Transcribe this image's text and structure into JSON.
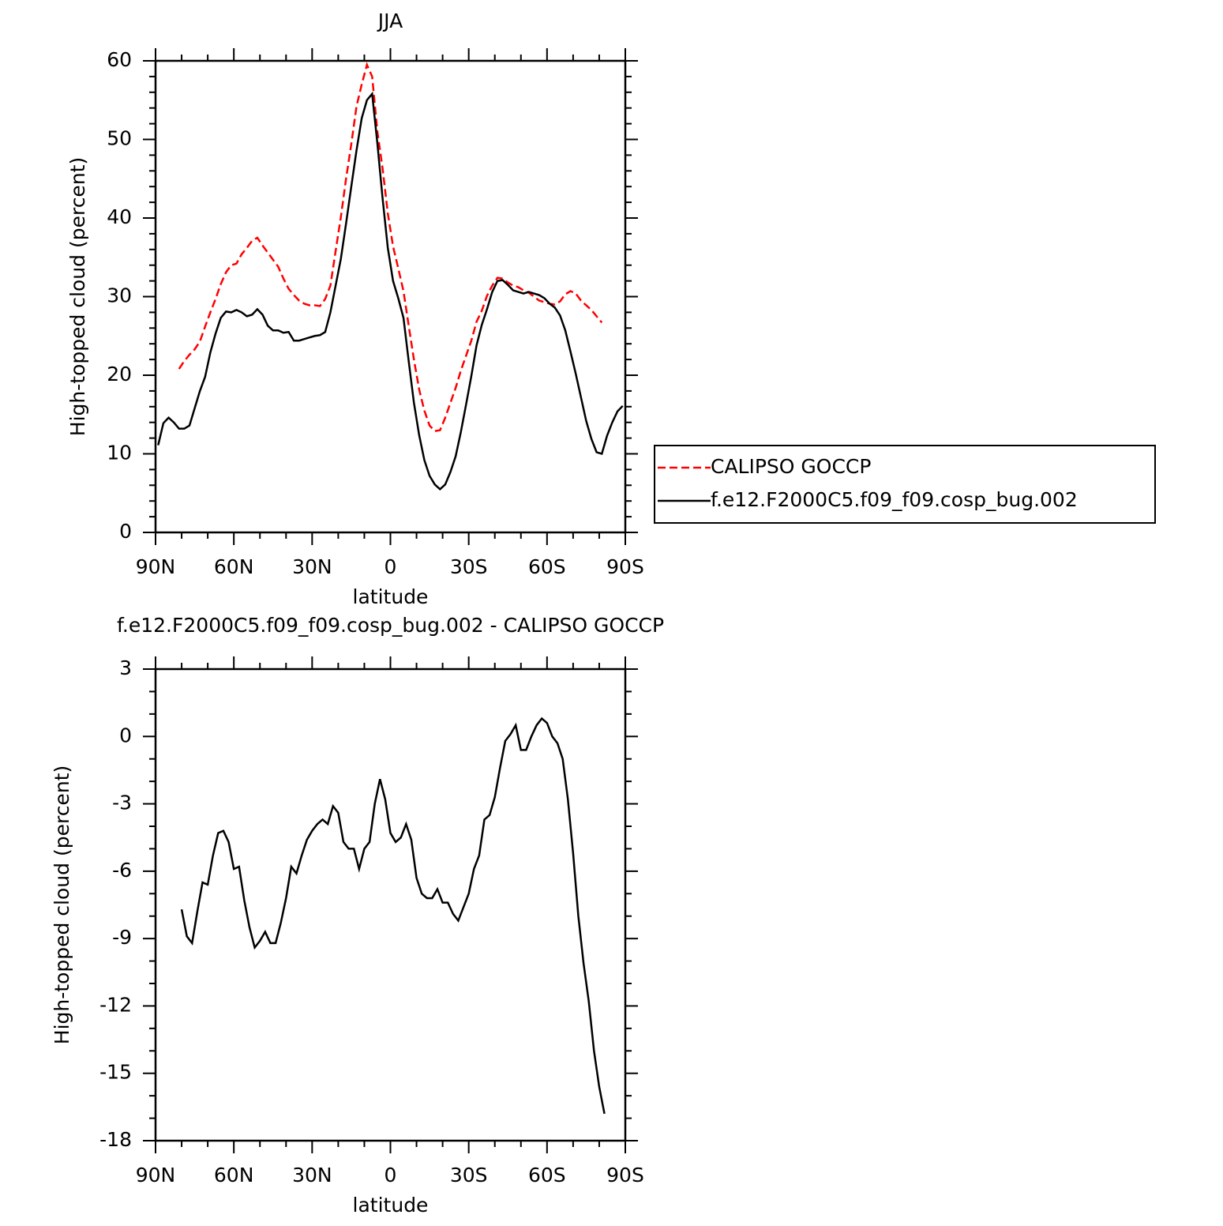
{
  "chart_data": [
    {
      "type": "line",
      "title": "JJA",
      "x_label": "latitude",
      "y_label": "High-topped cloud (percent)",
      "x": [
        89,
        87,
        85,
        83,
        81,
        79,
        77,
        75,
        73,
        71,
        69,
        67,
        65,
        63,
        61,
        59,
        57,
        55,
        53,
        51,
        49,
        47,
        45,
        43,
        41,
        39,
        37,
        35,
        33,
        31,
        29,
        27,
        25,
        23,
        21,
        19,
        17,
        15,
        13,
        11,
        9,
        7,
        5,
        3,
        1,
        -1,
        -3,
        -5,
        -7,
        -9,
        -11,
        -13,
        -15,
        -17,
        -19,
        -21,
        -23,
        -25,
        -27,
        -29,
        -31,
        -33,
        -35,
        -37,
        -39,
        -41,
        -43,
        -45,
        -47,
        -49,
        -51,
        -53,
        -55,
        -57,
        -59,
        -61,
        -63,
        -65,
        -67,
        -69,
        -71,
        -73,
        -75,
        -77,
        -79,
        -81,
        -83,
        -85,
        -87,
        -89
      ],
      "xlim": [
        90,
        -90
      ],
      "xticks": [
        {
          "value": 90,
          "label": "90N"
        },
        {
          "value": 60,
          "label": "60N"
        },
        {
          "value": 30,
          "label": "30N"
        },
        0,
        {
          "value": -30,
          "label": "30S"
        },
        {
          "value": -60,
          "label": "60S"
        },
        {
          "value": -90,
          "label": "90S"
        }
      ],
      "ylim": [
        0,
        60
      ],
      "yticks": [
        0,
        10,
        20,
        30,
        40,
        50,
        60
      ],
      "legend": "right",
      "series": [
        {
          "name": "CALIPSO GOCCP",
          "color": "#ff0000",
          "linestyle": "dashed",
          "values": [
            null,
            null,
            null,
            null,
            20.8,
            21.8,
            22.6,
            23.3,
            24.3,
            26.2,
            28.0,
            29.7,
            31.6,
            33.1,
            34.0,
            34.2,
            35.4,
            36.2,
            37.1,
            37.5,
            36.5,
            35.6,
            34.7,
            33.8,
            32.3,
            31.0,
            30.2,
            29.5,
            29.1,
            28.9,
            28.9,
            28.8,
            29.7,
            31.4,
            35.8,
            40.1,
            45.0,
            49.4,
            54.2,
            57.0,
            59.5,
            58.0,
            51.0,
            46.3,
            40.6,
            36.4,
            33.6,
            30.7,
            26.3,
            22.0,
            18.2,
            15.5,
            13.6,
            12.9,
            13.0,
            14.6,
            16.5,
            18.4,
            20.6,
            22.5,
            24.4,
            26.8,
            28.2,
            30.1,
            31.4,
            32.4,
            32.3,
            31.8,
            31.4,
            31.2,
            30.8,
            30.5,
            30.0,
            29.5,
            29.3,
            29.1,
            29.0,
            29.4,
            30.3,
            30.7,
            30.4,
            29.5,
            28.9,
            28.3,
            27.5,
            26.7,
            null,
            null,
            null,
            null
          ]
        },
        {
          "name": "f.e12.F2000C5.f09_f09.cosp_bug.002",
          "color": "#000000",
          "linestyle": "solid",
          "values": [
            11.1,
            13.9,
            14.6,
            14.0,
            13.2,
            13.2,
            13.6,
            15.8,
            18.0,
            19.8,
            22.9,
            25.3,
            27.3,
            28.1,
            28.0,
            28.3,
            28.0,
            27.5,
            27.7,
            28.4,
            27.7,
            26.3,
            25.7,
            25.7,
            25.4,
            25.5,
            24.4,
            24.4,
            24.6,
            24.8,
            25.0,
            25.1,
            25.5,
            28.0,
            31.4,
            34.8,
            39.3,
            44.0,
            48.6,
            52.7,
            55.0,
            55.8,
            49.5,
            42.5,
            36.2,
            32.0,
            29.8,
            27.3,
            21.8,
            16.5,
            12.4,
            9.2,
            7.2,
            6.1,
            5.5,
            6.1,
            7.7,
            9.7,
            12.8,
            16.3,
            19.9,
            23.8,
            26.4,
            28.4,
            30.6,
            32.0,
            32.1,
            31.5,
            30.8,
            30.6,
            30.4,
            30.6,
            30.4,
            30.2,
            29.8,
            29.1,
            28.6,
            27.6,
            25.7,
            23.0,
            20.2,
            17.2,
            14.2,
            11.9,
            10.2,
            10.0,
            12.3,
            14.0,
            15.4,
            16.1
          ]
        }
      ]
    },
    {
      "type": "line",
      "title": "f.e12.F2000C5.f09_f09.cosp_bug.002 - CALIPSO GOCCP",
      "x_label": "latitude",
      "y_label": "High-topped cloud (percent)",
      "x": [
        80,
        78,
        76,
        74,
        72,
        70,
        68,
        66,
        64,
        62,
        60,
        58,
        56,
        54,
        52,
        50,
        48,
        46,
        44,
        42,
        40,
        38,
        36,
        34,
        32,
        30,
        28,
        26,
        24,
        22,
        20,
        18,
        16,
        14,
        12,
        10,
        8,
        6,
        4,
        2,
        0,
        -2,
        -4,
        -6,
        -8,
        -10,
        -12,
        -14,
        -16,
        -18,
        -20,
        -22,
        -24,
        -26,
        -28,
        -30,
        -32,
        -34,
        -36,
        -38,
        -40,
        -42,
        -44,
        -46,
        -48,
        -50,
        -52,
        -54,
        -56,
        -58,
        -60,
        -62,
        -64,
        -66,
        -68,
        -70,
        -72,
        -74,
        -76,
        -78,
        -80,
        -82
      ],
      "xlim": [
        90,
        -90
      ],
      "xticks": [
        {
          "value": 90,
          "label": "90N"
        },
        {
          "value": 60,
          "label": "60N"
        },
        {
          "value": 30,
          "label": "30N"
        },
        0,
        {
          "value": -30,
          "label": "30S"
        },
        {
          "value": -60,
          "label": "60S"
        },
        {
          "value": -90,
          "label": "90S"
        }
      ],
      "ylim": [
        -18,
        3
      ],
      "yticks": [
        -18,
        -15,
        -12,
        -9,
        -6,
        -3,
        0,
        3
      ],
      "series": [
        {
          "color": "#000000",
          "linestyle": "solid",
          "values": [
            -7.7,
            -8.9,
            -9.2,
            -7.8,
            -6.5,
            -6.6,
            -5.3,
            -4.3,
            -4.2,
            -4.7,
            -5.9,
            -5.8,
            -7.3,
            -8.5,
            -9.4,
            -9.1,
            -8.7,
            -9.2,
            -9.2,
            -8.3,
            -7.2,
            -5.8,
            -6.1,
            -5.3,
            -4.6,
            -4.2,
            -3.9,
            -3.7,
            -3.9,
            -3.1,
            -3.4,
            -4.7,
            -5.0,
            -5.0,
            -5.9,
            -5.0,
            -4.7,
            -3.0,
            -1.9,
            -2.8,
            -4.3,
            -4.7,
            -4.5,
            -3.9,
            -4.6,
            -6.3,
            -7.0,
            -7.2,
            -7.2,
            -6.8,
            -7.4,
            -7.4,
            -7.9,
            -8.2,
            -7.6,
            -7.0,
            -5.9,
            -5.3,
            -3.7,
            -3.5,
            -2.7,
            -1.4,
            -0.2,
            0.1,
            0.5,
            -0.6,
            -0.6,
            0.0,
            0.5,
            0.8,
            0.6,
            0.0,
            -0.3,
            -1.0,
            -2.8,
            -5.2,
            -8.0,
            -10.1,
            -11.8,
            -14.0,
            -15.6,
            -16.8
          ]
        }
      ]
    }
  ]
}
